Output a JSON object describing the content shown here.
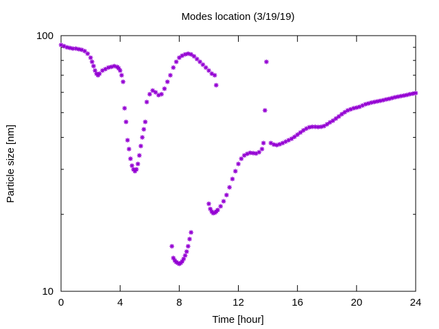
{
  "chart_data": {
    "type": "scatter",
    "title": "Modes location (3/19/19)",
    "xlabel": "Time [hour]",
    "ylabel": "Particle size [nm]",
    "xlim": [
      0,
      24
    ],
    "ylim": [
      10,
      100
    ],
    "y_scale": "log",
    "grid": false,
    "legend": "none",
    "marker_color": "#9400d3",
    "x_ticks": [
      0,
      4,
      8,
      12,
      16,
      20,
      24
    ],
    "x_tick_labels": [
      "0",
      "4",
      "8",
      "12",
      "16",
      "20",
      "24"
    ],
    "y_ticks": [
      10,
      100
    ],
    "y_tick_labels": [
      "10",
      "100"
    ],
    "series": [
      {
        "x": [
          0.0,
          0.2,
          0.4,
          0.6,
          0.8,
          1.0,
          1.2,
          1.4,
          1.6,
          1.8,
          2.0,
          2.1,
          2.2,
          2.3,
          2.4,
          2.5,
          2.6,
          2.8,
          3.0,
          3.2,
          3.4,
          3.6,
          3.8,
          3.9,
          4.0,
          4.1,
          4.2,
          4.3,
          4.4,
          4.5,
          4.6,
          4.7,
          4.8,
          4.9,
          5.0,
          5.1,
          5.2,
          5.3,
          5.4,
          5.5,
          5.6,
          5.7,
          5.8,
          6.0,
          6.2,
          6.4,
          6.6,
          6.8,
          7.0,
          7.2,
          7.4,
          7.6,
          7.8,
          8.0,
          8.2,
          8.4,
          8.6,
          8.8,
          9.0,
          9.2,
          9.4,
          9.6,
          9.8,
          10.0,
          10.2,
          10.4,
          10.5
        ],
        "y": [
          92,
          91,
          90,
          89.5,
          89,
          89,
          88.5,
          88,
          87,
          85,
          82,
          79,
          76,
          73,
          71,
          70,
          71,
          73,
          74,
          75,
          75.5,
          76,
          75.5,
          74.5,
          73,
          70,
          66,
          52,
          46,
          39,
          36,
          33,
          31,
          30,
          29.5,
          30,
          31.5,
          34,
          37,
          40,
          43,
          46,
          55,
          59,
          61,
          60,
          58.5,
          59,
          62,
          66,
          70,
          75,
          79,
          82,
          83.5,
          84.5,
          85,
          84.5,
          83,
          81,
          79,
          77,
          75,
          73,
          71,
          70,
          64
        ]
      },
      {
        "x": [
          7.5,
          7.6,
          7.7,
          7.8,
          7.9,
          8.0,
          8.1,
          8.2,
          8.3,
          8.4,
          8.5,
          8.6,
          8.7,
          8.8
        ],
        "y": [
          15,
          13.5,
          13.2,
          13,
          12.9,
          12.8,
          12.9,
          13.1,
          13.4,
          13.8,
          14.3,
          15,
          16,
          17
        ]
      },
      {
        "x": [
          10.0,
          10.1,
          10.2,
          10.3,
          10.4,
          10.5,
          10.6,
          10.8,
          11.0,
          11.2,
          11.4,
          11.6,
          11.8,
          12.0,
          12.2,
          12.4,
          12.6,
          12.8,
          13.0,
          13.2,
          13.4,
          13.6,
          13.7,
          13.8
        ],
        "y": [
          22,
          21,
          20.5,
          20.2,
          20.3,
          20.5,
          20.8,
          21.5,
          22.5,
          23.8,
          25.5,
          27.5,
          29.5,
          31.5,
          33,
          34,
          34.5,
          34.8,
          34.7,
          34.6,
          35,
          36,
          38,
          51
        ]
      },
      {
        "x": [
          13.9
        ],
        "y": [
          79
        ]
      },
      {
        "x": [
          14.2,
          14.4,
          14.6,
          14.8,
          15.0,
          15.2,
          15.4,
          15.6,
          15.8,
          16.0,
          16.2,
          16.4,
          16.6,
          16.8,
          17.0,
          17.2,
          17.4,
          17.6,
          17.8,
          18.0,
          18.2,
          18.4,
          18.6,
          18.8,
          19.0,
          19.2,
          19.4,
          19.6,
          19.8,
          20.0,
          20.2,
          20.4,
          20.6,
          20.8,
          21.0,
          21.2,
          21.4,
          21.6,
          21.8,
          22.0,
          22.2,
          22.4,
          22.6,
          22.8,
          23.0,
          23.2,
          23.4,
          23.6,
          23.8,
          24.0
        ],
        "y": [
          38,
          37.5,
          37.3,
          37.6,
          38,
          38.5,
          39,
          39.5,
          40.2,
          41,
          41.8,
          42.6,
          43.3,
          43.8,
          44,
          44,
          43.9,
          44,
          44.3,
          45,
          45.8,
          46.5,
          47.4,
          48.3,
          49.3,
          50.2,
          51,
          51.5,
          52,
          52.3,
          52.7,
          53.3,
          53.9,
          54.3,
          54.7,
          55,
          55.3,
          55.6,
          55.9,
          56.3,
          56.6,
          57,
          57.4,
          57.7,
          58,
          58.3,
          58.6,
          59,
          59.3,
          59.6
        ]
      }
    ]
  }
}
